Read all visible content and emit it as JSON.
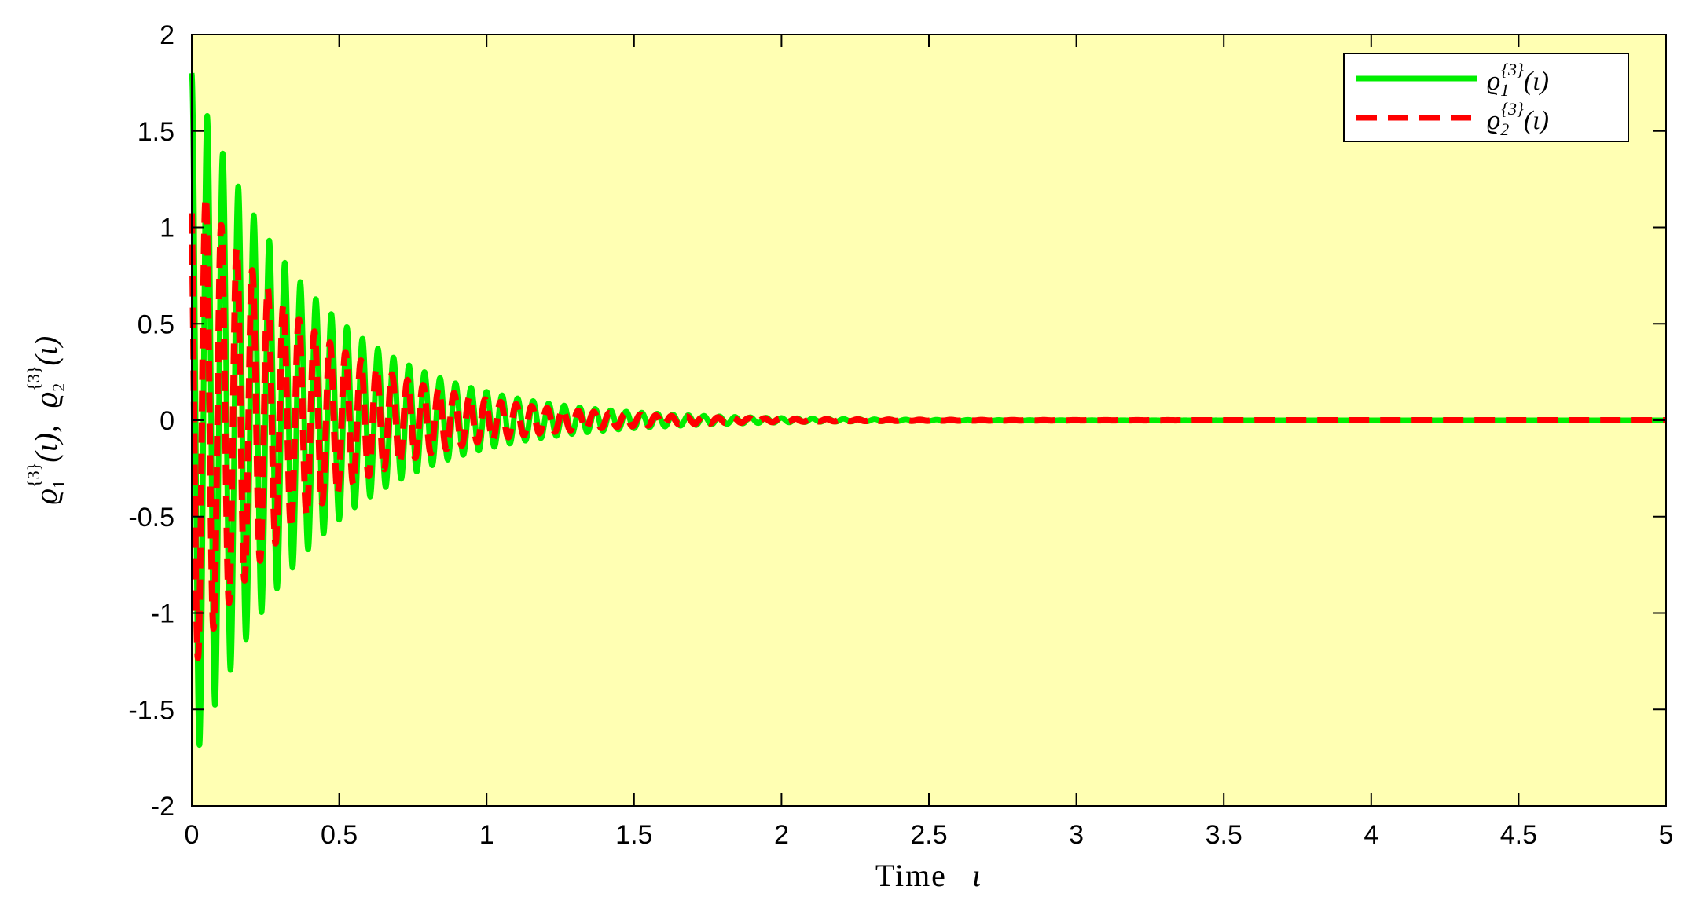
{
  "chart_data": {
    "type": "line",
    "xlabel": {
      "text": "Time",
      "symbol": "ι"
    },
    "ylabel": {
      "base1": "ϱ",
      "sub1": "1",
      "sup1": "{3}",
      "arg1": "(ι),",
      "base2": "ϱ",
      "sub2": "2",
      "sup2": "{3}",
      "arg2": "(ι)"
    },
    "xlim": [
      0,
      5
    ],
    "ylim": [
      -2,
      2
    ],
    "xticks": [
      "0",
      "0.5",
      "1",
      "1.5",
      "2",
      "2.5",
      "3",
      "3.5",
      "4",
      "4.5",
      "5"
    ],
    "yticks": [
      "2",
      "1.5",
      "1",
      "0.5",
      "0",
      "-0.5",
      "-1",
      "-1.5",
      "-2"
    ],
    "grid": false,
    "legend_position": "top-right",
    "plot_background": "#ffffb3",
    "series": [
      {
        "name": {
          "base": "ϱ",
          "sub": "1",
          "sup": "{3}",
          "arg": "(ι)"
        },
        "color": "#00ee00",
        "style": "solid",
        "initial_amplitude": 1.8,
        "decay_rate": 2.5,
        "oscillation_frequency": 19,
        "envelope": {
          "x": [
            0,
            0.05,
            0.5,
            1,
            1.5,
            2,
            2.5,
            3,
            5
          ],
          "y": [
            1.8,
            1.65,
            0.5,
            0.15,
            0.04,
            0.01,
            0.003,
            0.001,
            0
          ]
        }
      },
      {
        "name": {
          "base": "ϱ",
          "sub": "2",
          "sup": "{3}",
          "arg": "(ι)"
        },
        "color": "#ff0000",
        "style": "dashed",
        "initial_amplitude": 1.3,
        "decay_rate": 2.5,
        "oscillation_frequency": 19,
        "envelope": {
          "x": [
            0,
            0.05,
            0.5,
            1,
            1.5,
            2,
            2.5,
            3,
            5
          ],
          "y": [
            1.3,
            1.1,
            0.35,
            0.1,
            0.03,
            0.008,
            0.002,
            0.001,
            0
          ]
        }
      }
    ]
  }
}
